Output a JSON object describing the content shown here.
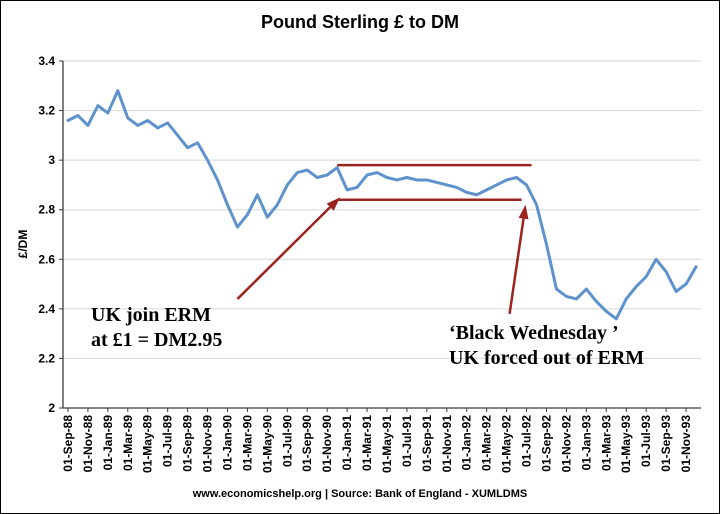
{
  "page": {
    "footer": "www.economicshelp.org | Source: Bank of England - XUMLDMS"
  },
  "chart_data": {
    "type": "line",
    "title": "Pound Sterling £ to DM",
    "ylabel": "£/DM",
    "ylim": [
      2,
      3.4
    ],
    "ytick_step": 0.2,
    "ytick_labels": [
      "2",
      "2.2",
      "2.4",
      "2.6",
      "2.8",
      "3",
      "3.2",
      "3.4"
    ],
    "x_tick_labels": [
      "01-Sep-88",
      "01-Nov-88",
      "01-Jan-89",
      "01-Mar-89",
      "01-May-89",
      "01-Jul-89",
      "01-Sep-89",
      "01-Nov-89",
      "01-Jan-90",
      "01-Mar-90",
      "01-May-90",
      "01-Jul-90",
      "01-Sep-90",
      "01-Nov-90",
      "01-Jan-91",
      "01-Mar-91",
      "01-May-91",
      "01-Jul-91",
      "01-Sep-91",
      "01-Nov-91",
      "01-Jan-92",
      "01-Mar-92",
      "01-May-92",
      "01-Jul-92",
      "01-Sep-92",
      "01-Nov-92",
      "01-Jan-93",
      "01-Mar-93",
      "01-May-93",
      "01-Jul-93",
      "01-Sep-93",
      "01-Nov-93"
    ],
    "points_per_tick": 2,
    "series": [
      {
        "name": "Pound Sterling to DM exchange rate",
        "values": [
          3.16,
          3.18,
          3.14,
          3.22,
          3.19,
          3.28,
          3.17,
          3.14,
          3.16,
          3.13,
          3.15,
          3.1,
          3.05,
          3.07,
          3.0,
          2.92,
          2.82,
          2.73,
          2.78,
          2.86,
          2.77,
          2.82,
          2.9,
          2.95,
          2.96,
          2.93,
          2.94,
          2.97,
          2.88,
          2.89,
          2.94,
          2.95,
          2.93,
          2.92,
          2.93,
          2.92,
          2.92,
          2.91,
          2.9,
          2.89,
          2.87,
          2.86,
          2.88,
          2.9,
          2.92,
          2.93,
          2.9,
          2.82,
          2.66,
          2.48,
          2.45,
          2.44,
          2.48,
          2.43,
          2.39,
          2.36,
          2.44,
          2.49,
          2.53,
          2.6,
          2.55,
          2.47,
          2.5,
          2.57
        ]
      }
    ],
    "band_lines": [
      {
        "from_index": 27,
        "to_index": 46.5,
        "value": 2.98
      },
      {
        "from_index": 27,
        "to_index": 45.5,
        "value": 2.84
      }
    ],
    "arrows": [
      {
        "from": {
          "index": 17.0,
          "value": 2.44
        },
        "to": {
          "index": 27.3,
          "value": 2.85
        }
      },
      {
        "from": {
          "index": 44.3,
          "value": 2.38
        },
        "to": {
          "index": 45.9,
          "value": 2.82
        }
      }
    ],
    "annotations": [
      {
        "text": "UK join ERM\n at £1 = DM2.95"
      },
      {
        "text": "‘Black Wednesday ’\nUK forced out of ERM"
      }
    ],
    "colors": {
      "line": "#5E92CC",
      "accent_red": "#9A2420",
      "grid": "#D6D6D6",
      "axis": "#3C3C3C"
    },
    "legend": "none",
    "grid": "horizontal"
  }
}
